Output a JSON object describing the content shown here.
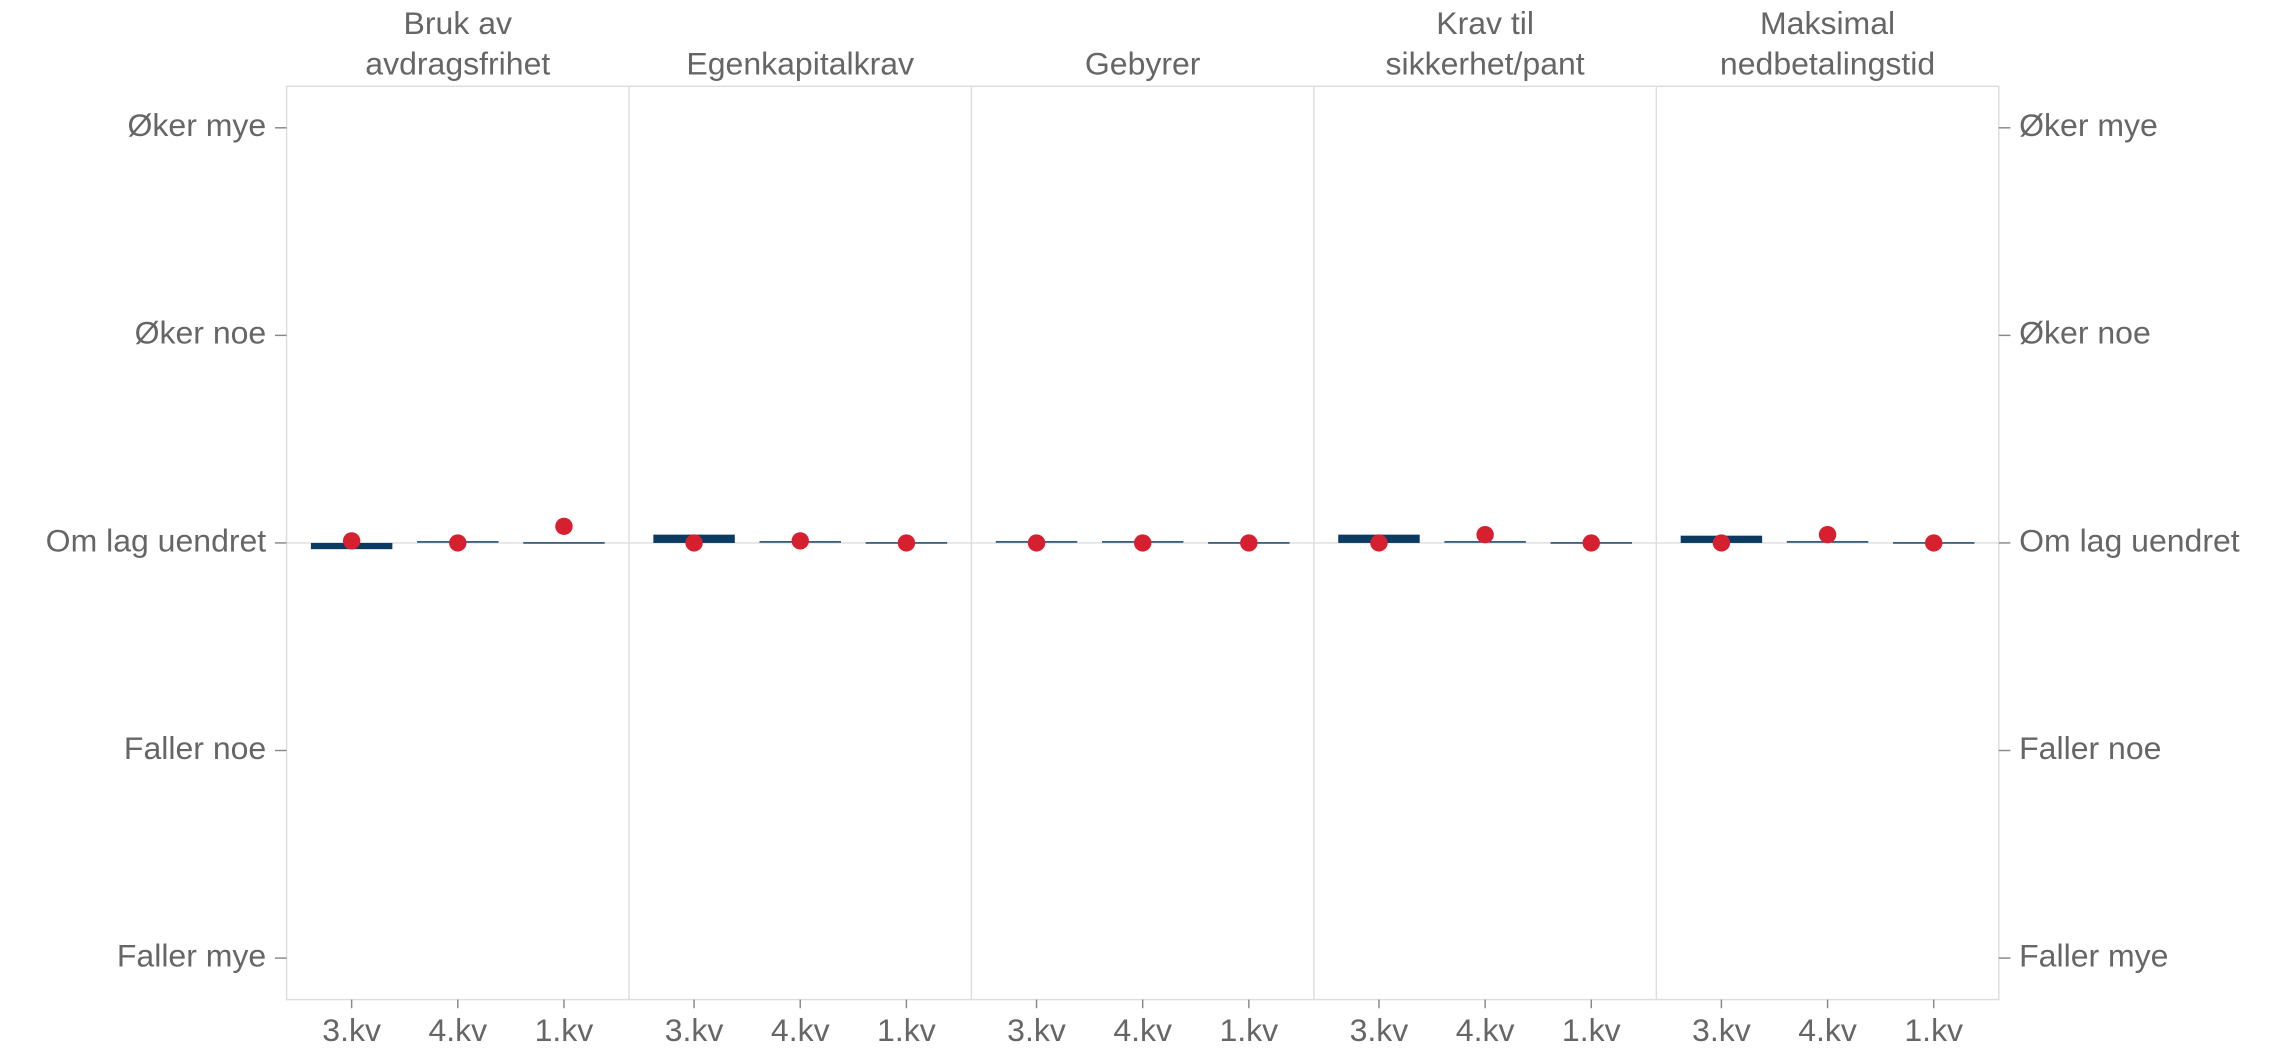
{
  "chart_data": {
    "type": "bar",
    "ylim": [
      -2.2,
      2.2
    ],
    "yticks": [
      {
        "value": 2,
        "label": "Øker mye"
      },
      {
        "value": 1,
        "label": "Øker noe"
      },
      {
        "value": 0,
        "label": "Om lag uendret"
      },
      {
        "value": -1,
        "label": "Faller noe"
      },
      {
        "value": -2,
        "label": "Faller mye"
      }
    ],
    "panels": [
      {
        "title": [
          "Bruk av",
          "avdragsfrihet"
        ],
        "categories": [
          "3.kv",
          "4.kv",
          "1.kv"
        ],
        "series": [
          {
            "type": "bar",
            "color": "#0b3a63",
            "values": [
              -0.03,
              0.005,
              0
            ]
          },
          {
            "type": "scatter",
            "color": "#d7202f",
            "values": [
              0.01,
              0,
              0.08
            ]
          }
        ]
      },
      {
        "title": [
          "Egenkapitalkrav"
        ],
        "categories": [
          "3.kv",
          "4.kv",
          "1.kv"
        ],
        "series": [
          {
            "type": "bar",
            "color": "#0b3a63",
            "values": [
              0.04,
              0.005,
              0
            ]
          },
          {
            "type": "scatter",
            "color": "#d7202f",
            "values": [
              0,
              0.01,
              0
            ]
          }
        ]
      },
      {
        "title": [
          "Gebyrer"
        ],
        "categories": [
          "3.kv",
          "4.kv",
          "1.kv"
        ],
        "series": [
          {
            "type": "bar",
            "color": "#0b3a63",
            "values": [
              0.005,
              0.005,
              0
            ]
          },
          {
            "type": "scatter",
            "color": "#d7202f",
            "values": [
              0,
              0,
              0
            ]
          }
        ]
      },
      {
        "title": [
          "Krav til",
          "sikkerhet/pant"
        ],
        "categories": [
          "3.kv",
          "4.kv",
          "1.kv"
        ],
        "series": [
          {
            "type": "bar",
            "color": "#0b3a63",
            "values": [
              0.04,
              0.005,
              0
            ]
          },
          {
            "type": "scatter",
            "color": "#d7202f",
            "values": [
              0,
              0.04,
              0
            ]
          }
        ]
      },
      {
        "title": [
          "Maksimal",
          "nedbetalingstid"
        ],
        "categories": [
          "3.kv",
          "4.kv",
          "1.kv"
        ],
        "series": [
          {
            "type": "bar",
            "color": "#0b3a63",
            "values": [
              0.035,
              0.005,
              0
            ]
          },
          {
            "type": "scatter",
            "color": "#d7202f",
            "values": [
              0,
              0.04,
              0
            ]
          }
        ]
      }
    ]
  }
}
